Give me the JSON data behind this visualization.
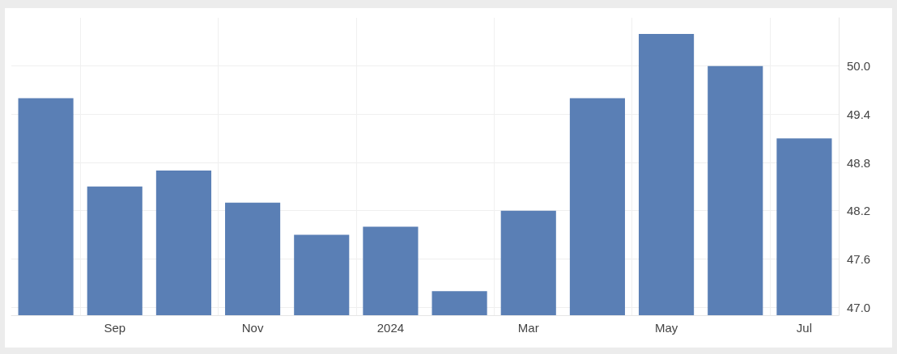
{
  "chart_data": {
    "type": "bar",
    "categories": [
      null,
      "Sep",
      null,
      "Nov",
      null,
      "2024",
      null,
      "Mar",
      null,
      "May",
      null,
      "Jul"
    ],
    "values": [
      49.6,
      48.5,
      48.7,
      48.3,
      47.9,
      48.0,
      47.2,
      48.2,
      49.6,
      50.4,
      50.0,
      49.1
    ],
    "color": "#5a7fb5",
    "ylim": [
      46.9,
      50.6
    ],
    "yticks": [
      {
        "value": 47.0,
        "label": "47.0"
      },
      {
        "value": 47.6,
        "label": "47.6"
      },
      {
        "value": 48.2,
        "label": "48.2"
      },
      {
        "value": 48.8,
        "label": "48.8"
      },
      {
        "value": 49.4,
        "label": "49.4"
      },
      {
        "value": 50.0,
        "label": "50.0"
      }
    ],
    "grid": true
  }
}
